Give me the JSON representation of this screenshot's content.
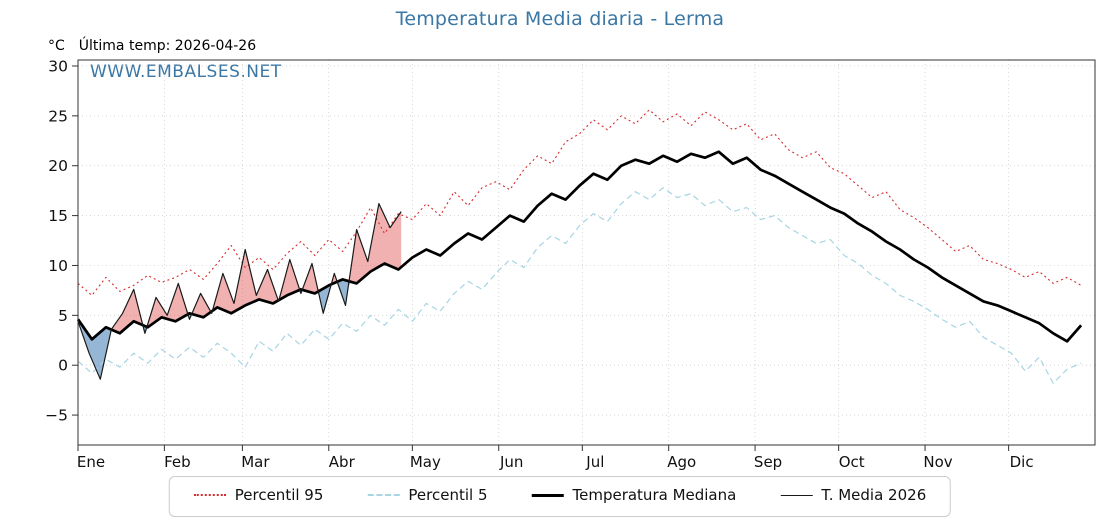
{
  "page": {
    "title": "Temperatura Media diaria - Lerma",
    "unit_label": "°C",
    "last_temp_label": "Última temp: 2026-04-26",
    "watermark": "WWW.EMBALSES.NET"
  },
  "colors": {
    "title": "#3a77a5",
    "watermark": "#3a77a5",
    "grid": "#cfcfcf",
    "axis": "#333333",
    "fill_above": "#e05252",
    "fill_below": "#5e8fbf"
  },
  "chart_data": {
    "type": "line",
    "title": "Temperatura Media diaria - Lerma",
    "subtitle": "Última temp: 2026-04-26",
    "xlabel": "",
    "ylabel": "°C",
    "grid": true,
    "legend_position": "bottom",
    "x_axis": {
      "tick_labels": [
        "Ene",
        "Feb",
        "Mar",
        "Abr",
        "May",
        "Jun",
        "Jul",
        "Ago",
        "Sep",
        "Oct",
        "Nov",
        "Dic"
      ],
      "tick_days": [
        0,
        31,
        59,
        90,
        120,
        151,
        181,
        212,
        243,
        273,
        304,
        334
      ],
      "days_in_year": 365
    },
    "y_axis": {
      "ticks": [
        -5,
        0,
        5,
        10,
        15,
        20,
        25,
        30
      ],
      "range": [
        -8,
        30.6
      ],
      "unit": "°C"
    },
    "series": [
      {
        "name": "Percentil 95",
        "style": "dotted",
        "color": "#d92b2b",
        "x_start": 0,
        "x_step": 5,
        "values": [
          8.2,
          7,
          8.8,
          7.4,
          8,
          9,
          8.3,
          8.8,
          9.6,
          8.6,
          10.2,
          12,
          9.8,
          10.8,
          9.6,
          11.2,
          12.4,
          11,
          12.6,
          11.4,
          13.4,
          15.8,
          13.2,
          15.2,
          14.6,
          16.2,
          15,
          17.4,
          16,
          17.8,
          18.4,
          17.6,
          19.6,
          21,
          20.2,
          22.4,
          23.2,
          24.6,
          23.6,
          25,
          24.2,
          25.6,
          24.4,
          25.2,
          24,
          25.4,
          24.6,
          23.6,
          24.2,
          22.6,
          23.2,
          21.6,
          20.8,
          21.4,
          19.8,
          19.2,
          18,
          16.8,
          17.4,
          15.6,
          14.8,
          13.8,
          12.6,
          11.4,
          12,
          10.6,
          10.2,
          9.6,
          8.8,
          9.4,
          8.2,
          8.8,
          8
        ]
      },
      {
        "name": "Percentil 5",
        "style": "dashed",
        "color": "#a6d5e4",
        "x_start": 0,
        "x_step": 5,
        "values": [
          0.4,
          -0.8,
          0.6,
          -0.2,
          1.2,
          0.2,
          1.6,
          0.6,
          1.8,
          0.8,
          2.2,
          1.2,
          -0.2,
          2.4,
          1.4,
          3.2,
          2,
          3.6,
          2.6,
          4.2,
          3.4,
          5,
          4,
          5.6,
          4.4,
          6.2,
          5.4,
          7.2,
          8.4,
          7.6,
          9.2,
          10.6,
          9.8,
          11.8,
          13,
          12.2,
          14,
          15.2,
          14.4,
          16.2,
          17.4,
          16.6,
          17.8,
          16.8,
          17.2,
          16,
          16.6,
          15.4,
          15.8,
          14.6,
          15,
          13.8,
          13,
          12.2,
          12.6,
          11,
          10.2,
          9,
          8.2,
          7,
          6.4,
          5.6,
          4.6,
          3.8,
          4.4,
          2.8,
          2,
          1.2,
          -0.6,
          0.8,
          -1.8,
          -0.4,
          0.2
        ]
      },
      {
        "name": "Temperatura Mediana",
        "style": "thick",
        "color": "#000000",
        "x_start": 0,
        "x_step": 5,
        "values": [
          4.6,
          2.6,
          3.8,
          3.2,
          4.4,
          3.8,
          4.8,
          4.4,
          5.2,
          4.8,
          5.8,
          5.2,
          6,
          6.6,
          6.2,
          7,
          7.6,
          7.2,
          8,
          8.6,
          8.2,
          9.4,
          10.2,
          9.6,
          10.8,
          11.6,
          11,
          12.2,
          13.2,
          12.6,
          13.8,
          15,
          14.4,
          16,
          17.2,
          16.6,
          18,
          19.2,
          18.6,
          20,
          20.6,
          20.2,
          21,
          20.4,
          21.2,
          20.8,
          21.4,
          20.2,
          20.8,
          19.6,
          19,
          18.2,
          17.4,
          16.6,
          15.8,
          15.2,
          14.2,
          13.4,
          12.4,
          11.6,
          10.6,
          9.8,
          8.8,
          8,
          7.2,
          6.4,
          6,
          5.4,
          4.8,
          4.2,
          3.2,
          2.4,
          4
        ]
      },
      {
        "name": "T. Media 2026",
        "style": "thin",
        "color": "#1a1a1a",
        "x_start": 0,
        "x_step": 4,
        "values": [
          4.4,
          1.2,
          -1.4,
          3.6,
          5.2,
          7.6,
          3.2,
          6.8,
          5,
          8.2,
          4.6,
          7.2,
          5.2,
          9.2,
          6.2,
          11.6,
          7,
          9.6,
          6.4,
          10.6,
          7.2,
          10.2,
          5.2,
          9.2,
          6,
          13.6,
          10.4,
          16.2,
          13.8,
          15.4
        ]
      }
    ],
    "fill_between": {
      "upper": "T. Media 2026",
      "baseline": "Temperatura Mediana",
      "above_color": "#e05252",
      "above_opacity": 0.45,
      "below_color": "#5e8fbf",
      "below_opacity": 0.65
    }
  }
}
